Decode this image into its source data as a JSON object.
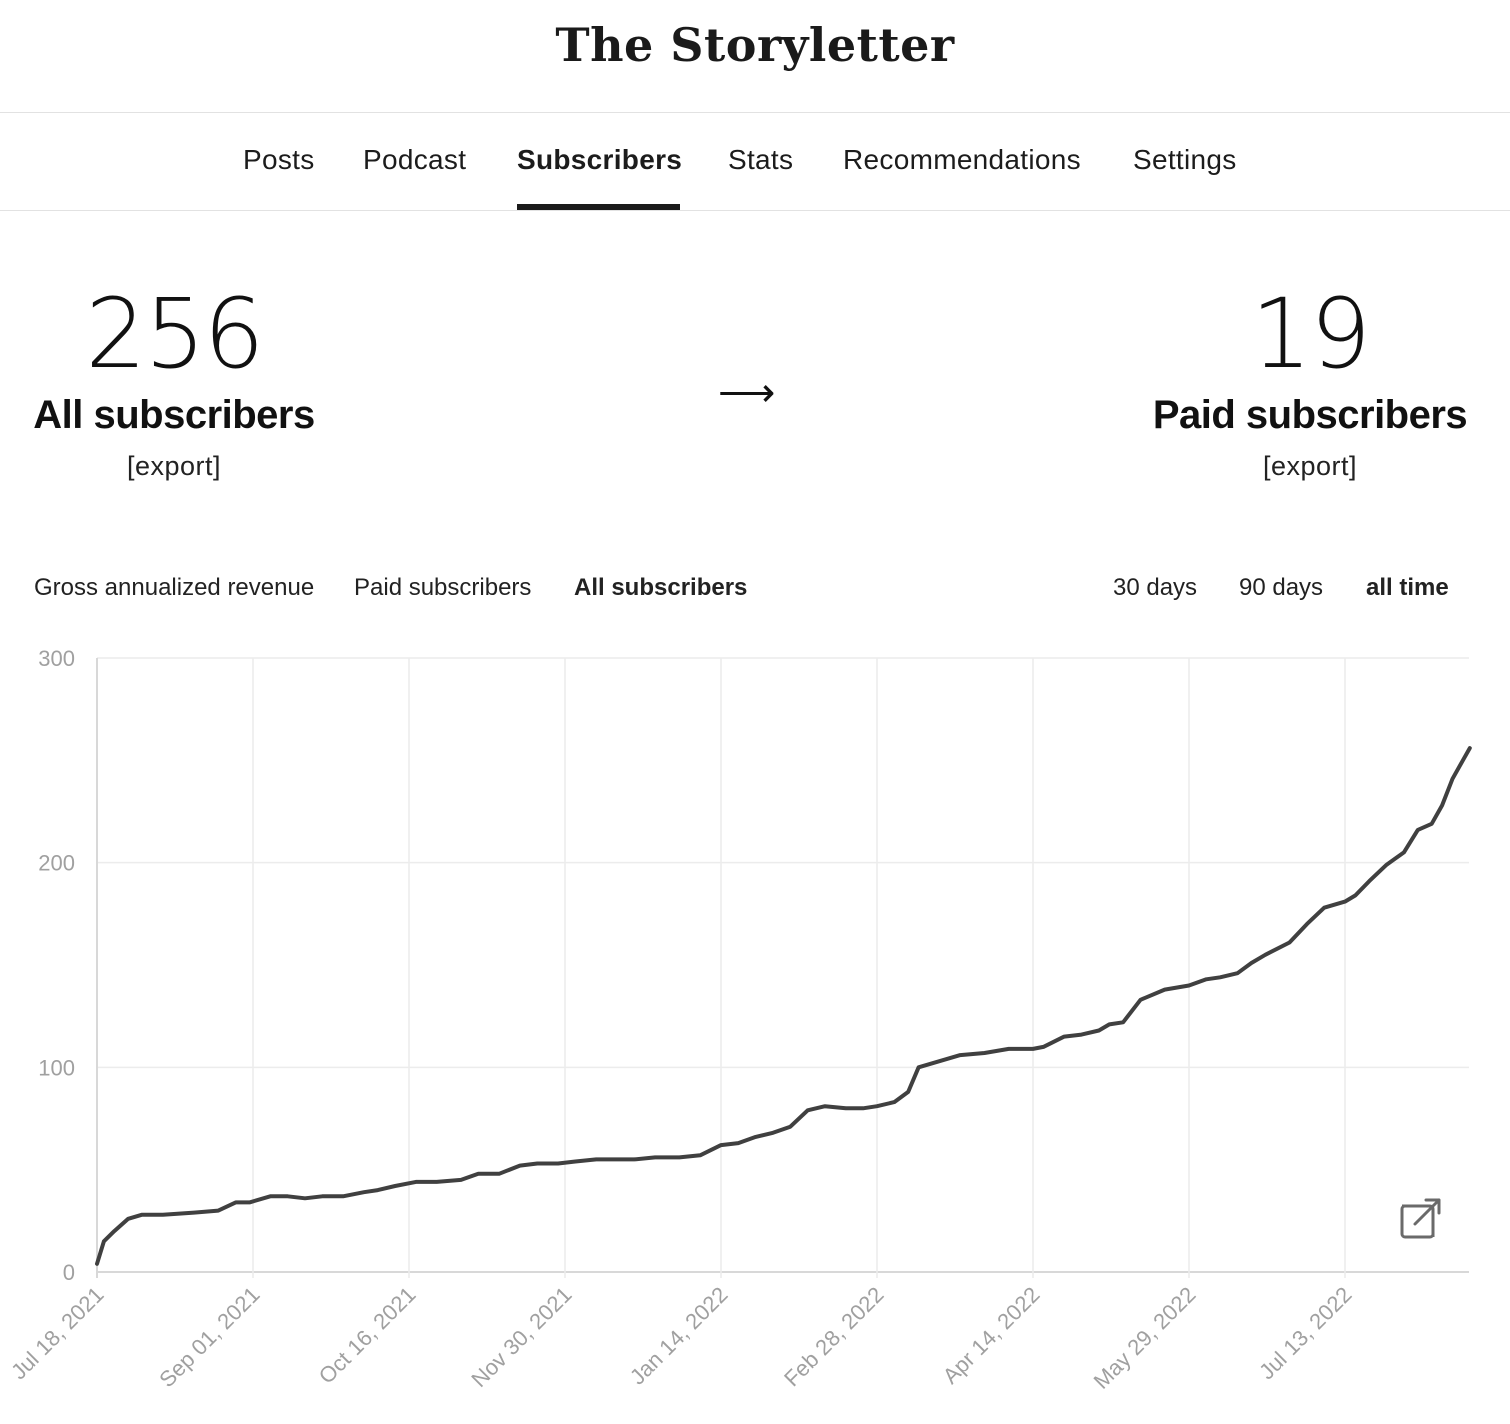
{
  "header": {
    "title": "The Storyletter"
  },
  "nav": {
    "items": [
      {
        "label": "Posts",
        "active": false
      },
      {
        "label": "Podcast",
        "active": false
      },
      {
        "label": "Subscribers",
        "active": true
      },
      {
        "label": "Stats",
        "active": false
      },
      {
        "label": "Recommendations",
        "active": false
      },
      {
        "label": "Settings",
        "active": false
      }
    ]
  },
  "summary": {
    "all": {
      "count": "256",
      "label": "All subscribers",
      "export_label": "[export]"
    },
    "arrow": "⟶",
    "paid": {
      "count": "19",
      "label": "Paid subscribers",
      "export_label": "[export]"
    }
  },
  "metric_tabs": [
    {
      "label": "Gross annualized revenue",
      "active": false
    },
    {
      "label": "Paid subscribers",
      "active": false
    },
    {
      "label": "All subscribers",
      "active": true
    }
  ],
  "range_tabs": [
    {
      "label": "30 days",
      "active": false
    },
    {
      "label": "90 days",
      "active": false
    },
    {
      "label": "all time",
      "active": true
    }
  ],
  "icons": {
    "external_link": "external-link-icon"
  },
  "colors": {
    "line": "#404040",
    "grid": "#ececec",
    "axis_text": "#a0a0a0"
  },
  "chart_data": {
    "type": "line",
    "title": "",
    "xlabel": "",
    "ylabel": "",
    "ylim": [
      0,
      300
    ],
    "yticks": [
      "0",
      "100",
      "200",
      "300"
    ],
    "xticks": [
      "Jul 18, 2021",
      "Sep 01, 2021",
      "Oct 16, 2021",
      "Nov 30, 2021",
      "Jan 14, 2022",
      "Feb 28, 2022",
      "Apr 14, 2022",
      "May 29, 2022",
      "Jul 13, 2022"
    ],
    "grid": true,
    "series": [
      {
        "x": [
          "2021-07-18",
          "2021-07-20",
          "2021-07-23",
          "2021-07-27",
          "2021-07-31",
          "2021-08-06",
          "2021-08-15",
          "2021-08-22",
          "2021-08-27",
          "2021-08-31",
          "2021-09-06",
          "2021-09-11",
          "2021-09-16",
          "2021-09-21",
          "2021-09-27",
          "2021-10-03",
          "2021-10-07",
          "2021-10-12",
          "2021-10-18",
          "2021-10-24",
          "2021-10-31",
          "2021-11-05",
          "2021-11-11",
          "2021-11-17",
          "2021-11-22",
          "2021-11-28",
          "2021-12-03",
          "2021-12-09",
          "2021-12-15",
          "2021-12-20",
          "2021-12-26",
          "2022-01-02",
          "2022-01-08",
          "2022-01-14",
          "2022-01-19",
          "2022-01-24",
          "2022-01-29",
          "2022-02-03",
          "2022-02-08",
          "2022-02-13",
          "2022-02-19",
          "2022-02-24",
          "2022-02-28",
          "2022-03-05",
          "2022-03-09",
          "2022-03-12",
          "2022-03-18",
          "2022-03-24",
          "2022-03-31",
          "2022-04-07",
          "2022-04-14",
          "2022-04-17",
          "2022-04-23",
          "2022-04-28",
          "2022-05-03",
          "2022-05-06",
          "2022-05-10",
          "2022-05-15",
          "2022-05-22",
          "2022-05-29",
          "2022-06-03",
          "2022-06-07",
          "2022-06-12",
          "2022-06-16",
          "2022-06-20",
          "2022-06-27",
          "2022-07-02",
          "2022-07-07",
          "2022-07-13",
          "2022-07-16",
          "2022-07-20",
          "2022-07-25",
          "2022-07-30",
          "2022-08-03",
          "2022-08-07",
          "2022-08-10",
          "2022-08-13",
          "2022-08-16",
          "2022-08-18"
        ],
        "values": [
          4,
          15,
          20,
          26,
          28,
          28,
          29,
          30,
          34,
          34,
          37,
          37,
          36,
          37,
          37,
          39,
          40,
          42,
          44,
          44,
          45,
          48,
          48,
          52,
          53,
          53,
          54,
          55,
          55,
          55,
          56,
          56,
          57,
          62,
          63,
          66,
          68,
          71,
          79,
          81,
          80,
          80,
          81,
          83,
          88,
          100,
          103,
          106,
          107,
          109,
          109,
          110,
          115,
          116,
          118,
          121,
          122,
          133,
          138,
          140,
          143,
          144,
          146,
          151,
          155,
          161,
          170,
          178,
          181,
          184,
          191,
          199,
          205,
          216,
          219,
          228,
          241,
          250,
          256
        ]
      }
    ]
  }
}
